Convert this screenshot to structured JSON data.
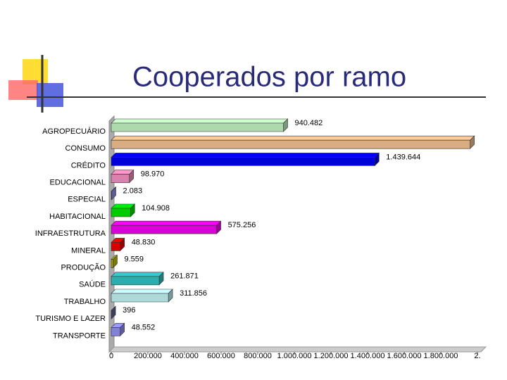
{
  "chart_data": {
    "type": "bar3d_horizontal",
    "title": "Cooperados por ramo",
    "categories": [
      "AGROPECUÁRIO",
      "CONSUMO",
      "CRÉDITO",
      "EDUCACIONAL",
      "ESPECIAL",
      "HABITACIONAL",
      "INFRAESTRUTURA",
      "MINERAL",
      "PRODUÇÃO",
      "SAÚDE",
      "TRABALHO",
      "TURISMO E LAZER",
      "TRANSPORTE"
    ],
    "values": [
      940482,
      1960000,
      1439644,
      98970,
      2083,
      104908,
      575256,
      48830,
      9559,
      261871,
      311856,
      396,
      48552
    ],
    "value_labels": [
      "940.482",
      null,
      "1.439.644",
      "98.970",
      "2.083",
      "104.908",
      "575.256",
      "48.830",
      "9.559",
      "261.871",
      "311.856",
      "396",
      "48.552"
    ],
    "colors": [
      "#ccffcc",
      "#ffcc99",
      "#0000ff",
      "#ff99cc",
      "#9999ff",
      "#00ee00",
      "#ff00ff",
      "#ff0000",
      "#cccc00",
      "#33cccc",
      "#ccffff",
      "#666699",
      "#9999ff"
    ],
    "xlim": [
      0,
      2000000
    ],
    "xticks": [
      0,
      {
        "value": 200000,
        "label": "200.000"
      },
      {
        "value": 400000,
        "label": "400.000"
      },
      {
        "value": 600000,
        "label": "600.000"
      },
      {
        "value": 800000,
        "label": "800.000"
      },
      {
        "value": 1000000,
        "label": "1.000.000"
      },
      {
        "value": 1200000,
        "label": "1.200.000"
      },
      {
        "value": 1400000,
        "label": "1.400.000"
      },
      {
        "value": 1600000,
        "label": "1.600.000"
      },
      {
        "value": 1800000,
        "label": "1.800.000"
      },
      {
        "value": 2000000,
        "label": "2."
      }
    ]
  }
}
